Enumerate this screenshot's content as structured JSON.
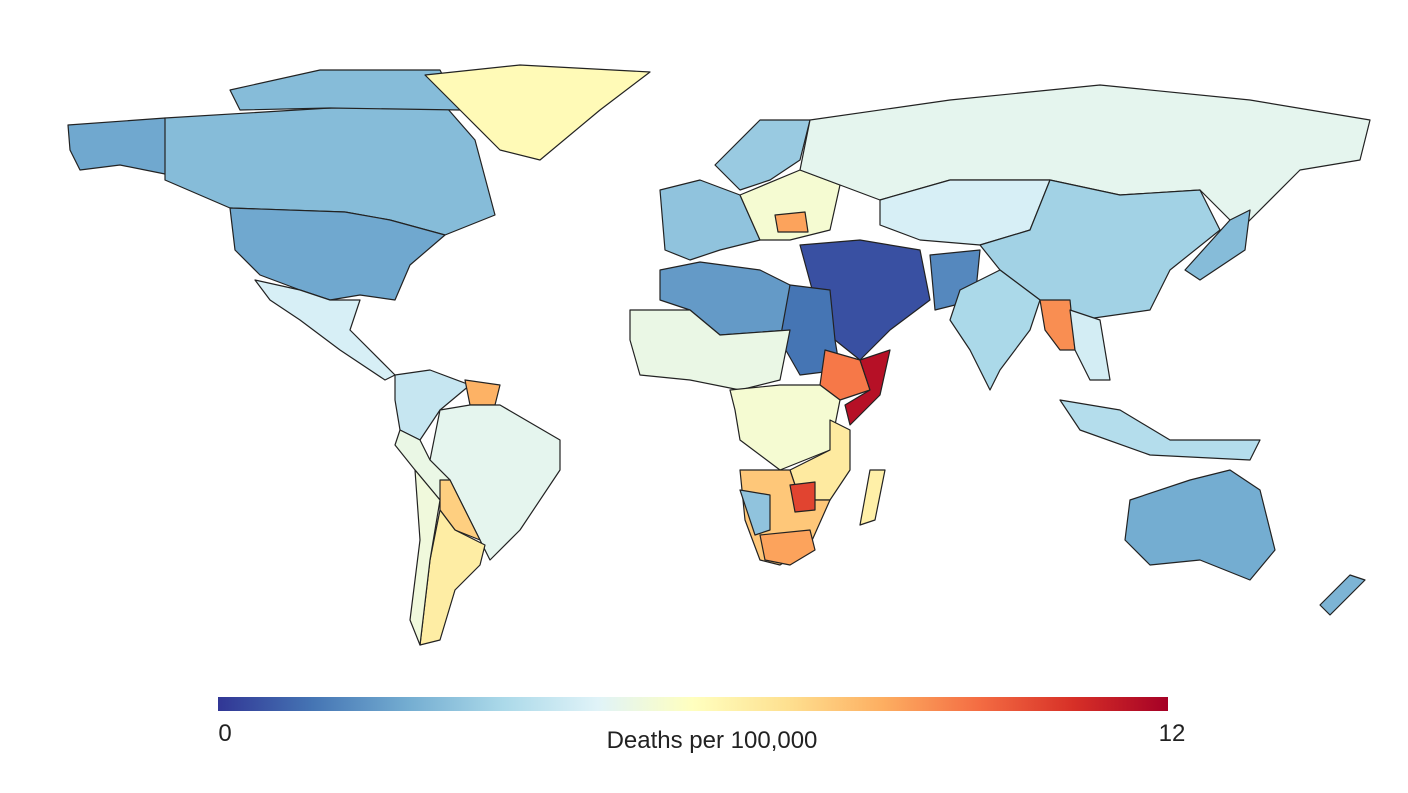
{
  "map": {
    "regions": [
      2.3,
      2.8,
      6.2,
      4.6,
      4.2,
      8.3,
      5.0,
      5.2,
      7.6,
      6.7,
      5.4,
      3.0,
      3.2,
      5.6,
      8.6,
      5.0,
      4.6,
      3.4,
      2.8,
      0.5,
      1.6,
      3.6,
      9.0,
      4.5,
      3.8,
      2.4,
      2.6,
      2.0,
      1.2,
      5.2,
      9.4,
      11.6,
      5.6,
      6.8,
      7.8,
      3.0,
      10.4,
      8.6,
      6.6
    ],
    "colorbar": {
      "min": 0,
      "max": 12,
      "label": "Deaths per 100,000",
      "colors": [
        "#313695",
        "#4575b4",
        "#74add1",
        "#abd9e9",
        "#e0f3f8",
        "#ffffbf",
        "#fee090",
        "#fdae61",
        "#f46d43",
        "#d73027",
        "#a50026"
      ]
    }
  }
}
